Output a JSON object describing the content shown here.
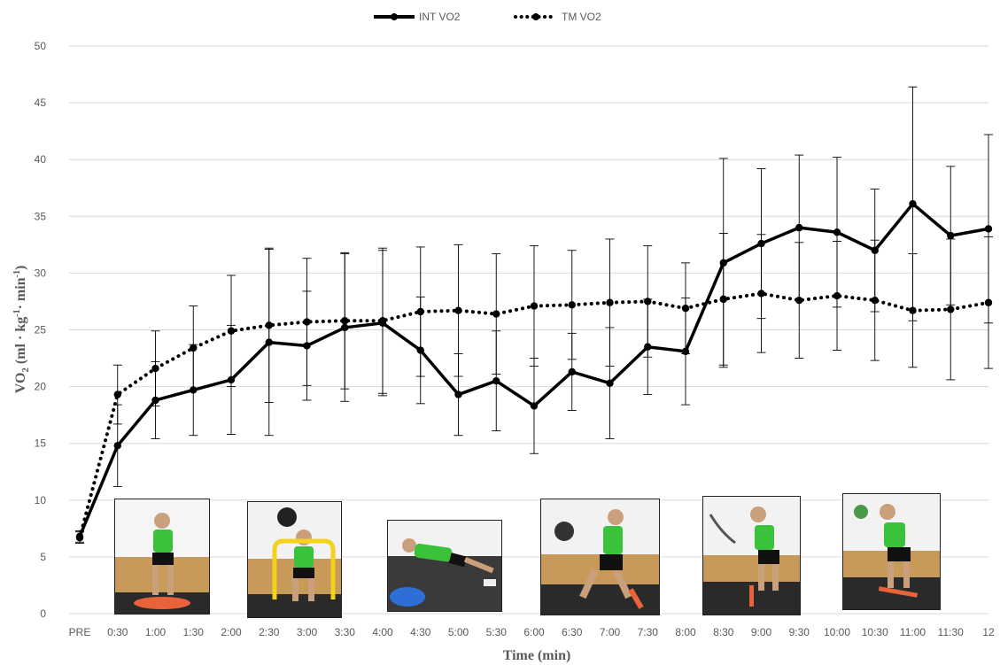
{
  "chart_data": {
    "type": "line",
    "xlabel": "Time (min)",
    "ylabel_main": "VO",
    "ylabel_sub": "2",
    "ylabel_rest": " (ml · kg",
    "ylabel_sup1": "-1",
    "ylabel_mid": "· min",
    "ylabel_sup2": "-1",
    "ylabel_end": ")",
    "ylim": [
      0,
      50
    ],
    "yticks": [
      0,
      5,
      10,
      15,
      20,
      25,
      30,
      35,
      40,
      45,
      50
    ],
    "grid": true,
    "legend_position": "top-center",
    "categories": [
      "PRE",
      "0:30",
      "1:00",
      "1:30",
      "2:00",
      "2:30",
      "3:00",
      "3:30",
      "4:00",
      "4:30",
      "5:00",
      "5:30",
      "6:00",
      "6:30",
      "7:00",
      "7:30",
      "8:00",
      "8:30",
      "9:00",
      "9:30",
      "10:00",
      "10:30",
      "11:00",
      "11:30",
      "12"
    ],
    "series": [
      {
        "name": "INT VO2",
        "style": "solid",
        "color": "#000000",
        "values": [
          6.8,
          14.8,
          18.8,
          19.7,
          20.6,
          23.9,
          23.6,
          25.2,
          25.6,
          23.2,
          19.3,
          20.5,
          18.3,
          21.3,
          20.3,
          23.5,
          23.1,
          30.9,
          32.6,
          34.0,
          33.6,
          32.0,
          36.1,
          33.3,
          33.9
        ],
        "errors": [
          0.5,
          3.6,
          3.4,
          4.0,
          4.8,
          8.2,
          4.8,
          6.5,
          6.4,
          4.7,
          3.6,
          4.4,
          4.2,
          3.4,
          4.9,
          4.2,
          4.7,
          9.2,
          6.6,
          6.4,
          6.6,
          5.4,
          10.3,
          6.1,
          8.3
        ]
      },
      {
        "name": "TM VO2",
        "style": "dotted",
        "color": "#000000",
        "values": [
          6.7,
          19.3,
          21.6,
          23.4,
          24.9,
          25.4,
          25.7,
          25.8,
          25.8,
          26.6,
          26.7,
          26.4,
          27.1,
          27.2,
          27.4,
          27.5,
          26.9,
          27.7,
          28.2,
          27.6,
          28.0,
          27.6,
          26.7,
          26.8,
          27.4
        ],
        "errors": [
          0.5,
          2.6,
          3.3,
          3.7,
          4.9,
          6.8,
          5.6,
          6.0,
          6.4,
          5.7,
          5.8,
          5.3,
          5.3,
          4.8,
          5.6,
          4.9,
          4.0,
          5.8,
          5.2,
          5.1,
          4.8,
          5.3,
          5.0,
          6.2,
          5.8
        ]
      }
    ]
  },
  "photos": [
    {
      "name": "balance-board-exercise-photo"
    },
    {
      "name": "hurdle-ball-toss-exercise-photo"
    },
    {
      "name": "bosu-plank-exercise-photo"
    },
    {
      "name": "medicine-ball-lunge-exercise-photo"
    },
    {
      "name": "rope-agility-exercise-photo"
    },
    {
      "name": "ball-slam-exercise-photo"
    }
  ]
}
